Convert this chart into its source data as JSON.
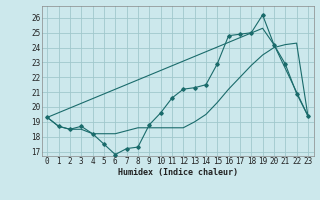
{
  "xlabel": "Humidex (Indice chaleur)",
  "bg_color": "#cce8ec",
  "grid_color": "#a0c8cc",
  "line_color": "#1a6b6b",
  "xlim": [
    -0.5,
    23.5
  ],
  "ylim": [
    16.7,
    26.8
  ],
  "yticks": [
    17,
    18,
    19,
    20,
    21,
    22,
    23,
    24,
    25,
    26
  ],
  "xticks": [
    0,
    1,
    2,
    3,
    4,
    5,
    6,
    7,
    8,
    9,
    10,
    11,
    12,
    13,
    14,
    15,
    16,
    17,
    18,
    19,
    20,
    21,
    22,
    23
  ],
  "line1_x": [
    0,
    1,
    2,
    3,
    4,
    5,
    6,
    7,
    8,
    9,
    10,
    11,
    12,
    13,
    14,
    15,
    16,
    17,
    18,
    19,
    20,
    21,
    22,
    23
  ],
  "line1_y": [
    19.3,
    18.7,
    18.5,
    18.7,
    18.2,
    17.5,
    16.8,
    17.2,
    17.3,
    18.8,
    19.6,
    20.6,
    21.2,
    21.3,
    21.5,
    22.9,
    24.8,
    24.9,
    25.0,
    26.2,
    24.2,
    22.9,
    20.9,
    19.4
  ],
  "line2_x": [
    0,
    1,
    2,
    3,
    4,
    5,
    6,
    7,
    8,
    9,
    10,
    11,
    12,
    13,
    14,
    15,
    16,
    17,
    18,
    19,
    20,
    21,
    22,
    23
  ],
  "line2_y": [
    19.3,
    18.7,
    18.5,
    18.5,
    18.2,
    18.2,
    18.2,
    18.4,
    18.6,
    18.6,
    18.6,
    18.6,
    18.6,
    19.0,
    19.5,
    20.3,
    21.2,
    22.0,
    22.8,
    23.5,
    24.0,
    24.2,
    24.3,
    19.4
  ],
  "line3_x": [
    0,
    19,
    20,
    23
  ],
  "line3_y": [
    19.3,
    25.3,
    24.2,
    19.4
  ],
  "xlabel_fontsize": 6.0,
  "tick_fontsize": 5.5
}
